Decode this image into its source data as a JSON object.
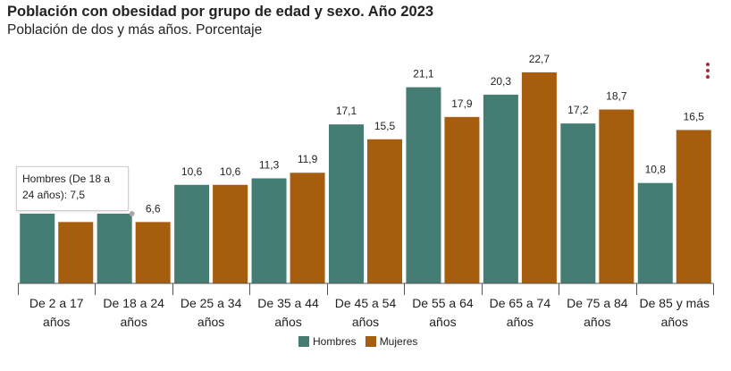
{
  "header": {
    "title": "Población con obesidad por grupo de edad y sexo. Año 2023",
    "subtitle": "Población de dos y más años. Porcentaje"
  },
  "tooltip": {
    "text": "Hombres (De 18 a 24 años): 7,5"
  },
  "legend": {
    "hombres": "Hombres",
    "mujeres": "Mujeres"
  },
  "icons": {
    "menu": "kebab-menu-icon"
  },
  "colors": {
    "hombres": "#457d75",
    "mujeres": "#a65d0e",
    "menu": "#a52a3a"
  },
  "chart_data": {
    "type": "bar",
    "categories": [
      [
        "De 2 a 17",
        "años"
      ],
      [
        "De 18 a 24",
        "años"
      ],
      [
        "De 25 a 34",
        "años"
      ],
      [
        "De 35 a 44",
        "años"
      ],
      [
        "De 45 a 54",
        "años"
      ],
      [
        "De 55 a 64",
        "años"
      ],
      [
        "De 65 a 74",
        "años"
      ],
      [
        "De 75 a 84",
        "años"
      ],
      [
        "De 85 y más",
        "años"
      ]
    ],
    "series": [
      {
        "name": "Hombres",
        "values": [
          7.5,
          7.5,
          10.6,
          11.3,
          17.1,
          21.1,
          20.3,
          17.2,
          10.8
        ],
        "labels": [
          null,
          null,
          "10,6",
          "11,3",
          "17,1",
          "21,1",
          "20,3",
          "17,2",
          "10,8"
        ]
      },
      {
        "name": "Mujeres",
        "values": [
          6.6,
          6.6,
          10.6,
          11.9,
          15.5,
          17.9,
          22.7,
          18.7,
          16.5
        ],
        "labels": [
          null,
          "6,6",
          "10,6",
          "11,9",
          "15,5",
          "17,9",
          "22,7",
          "18,7",
          "16,5"
        ]
      }
    ],
    "ylim": [
      0,
      24
    ],
    "grid": false,
    "legend_position": "bottom"
  }
}
